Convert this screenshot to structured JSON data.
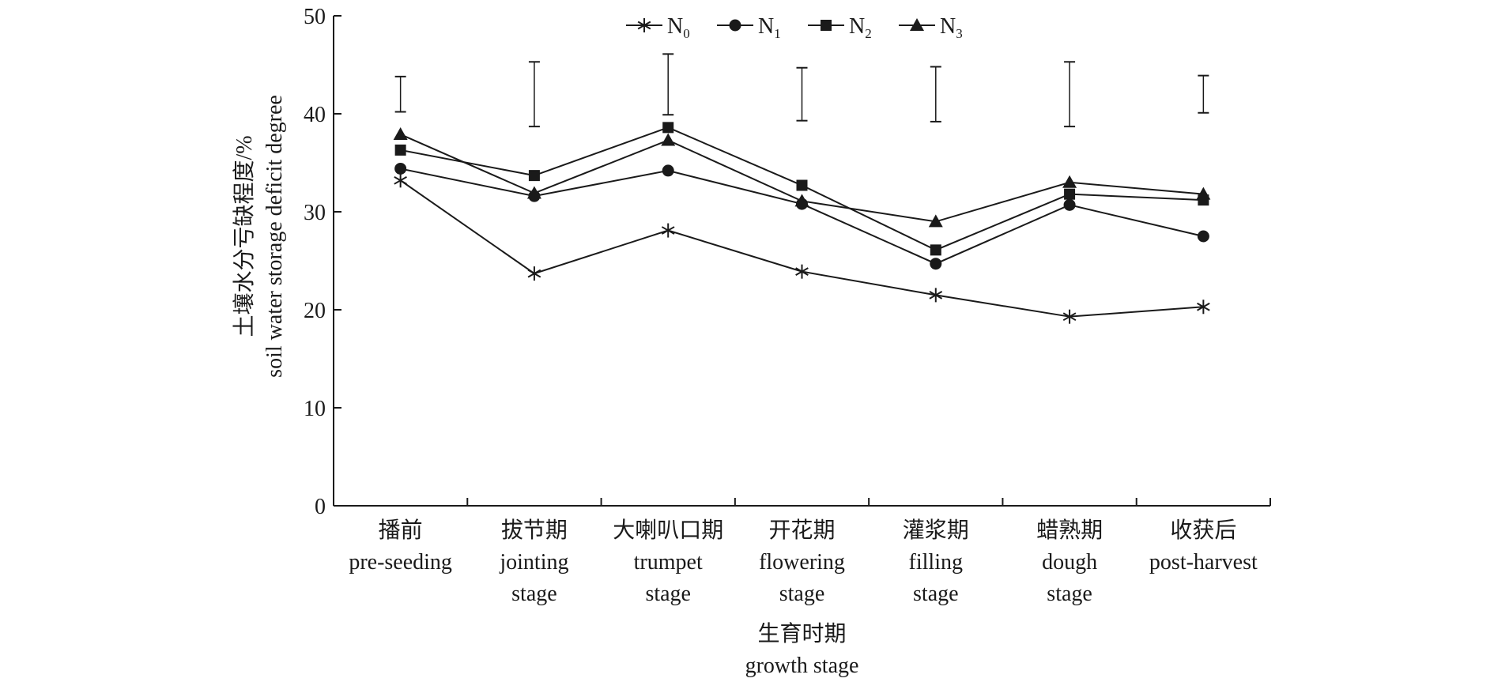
{
  "chart_data": {
    "type": "line",
    "ylabel_zh": "土壤水分亏缺程度/%",
    "ylabel_en": "soil water storage deficit degree",
    "xlabel_zh": "生育时期",
    "xlabel_en": "growth stage",
    "ylim": [
      0,
      50
    ],
    "yticks": [
      0,
      10,
      20,
      30,
      40,
      50
    ],
    "categories": [
      {
        "zh": "播前",
        "en": [
          "pre-seeding"
        ]
      },
      {
        "zh": "拔节期",
        "en": [
          "jointing",
          "stage"
        ]
      },
      {
        "zh": "大喇叭口期",
        "en": [
          "trumpet",
          "stage"
        ]
      },
      {
        "zh": "开花期",
        "en": [
          "flowering",
          "stage"
        ]
      },
      {
        "zh": "灌浆期",
        "en": [
          "filling",
          "stage"
        ]
      },
      {
        "zh": "蜡熟期",
        "en": [
          "dough",
          "stage"
        ]
      },
      {
        "zh": "收获后",
        "en": [
          "post-harvest"
        ]
      }
    ],
    "series": [
      {
        "name": "N",
        "sub": "0",
        "marker": "asterisk",
        "values": [
          33.2,
          23.7,
          28.1,
          23.9,
          21.5,
          19.3,
          20.3
        ]
      },
      {
        "name": "N",
        "sub": "1",
        "marker": "circle",
        "values": [
          34.4,
          31.6,
          34.2,
          30.8,
          24.7,
          30.7,
          27.5
        ]
      },
      {
        "name": "N",
        "sub": "2",
        "marker": "square",
        "values": [
          36.3,
          33.7,
          38.6,
          32.7,
          26.1,
          31.8,
          31.2
        ]
      },
      {
        "name": "N",
        "sub": "3",
        "marker": "triangle",
        "values": [
          37.9,
          31.9,
          37.3,
          31.1,
          29.0,
          33.0,
          31.8
        ]
      }
    ],
    "error_bars": [
      {
        "center": 42.0,
        "low": 40.2,
        "high": 43.8
      },
      {
        "center": 42.0,
        "low": 38.7,
        "high": 45.3
      },
      {
        "center": 43.0,
        "low": 39.9,
        "high": 46.1
      },
      {
        "center": 42.0,
        "low": 39.3,
        "high": 44.7
      },
      {
        "center": 42.0,
        "low": 39.2,
        "high": 44.8
      },
      {
        "center": 42.0,
        "low": 38.7,
        "high": 45.3
      },
      {
        "center": 42.0,
        "low": 40.1,
        "high": 43.9
      }
    ],
    "legend_position": "top-center",
    "grid": false,
    "line_color": "#1a1a1a"
  }
}
